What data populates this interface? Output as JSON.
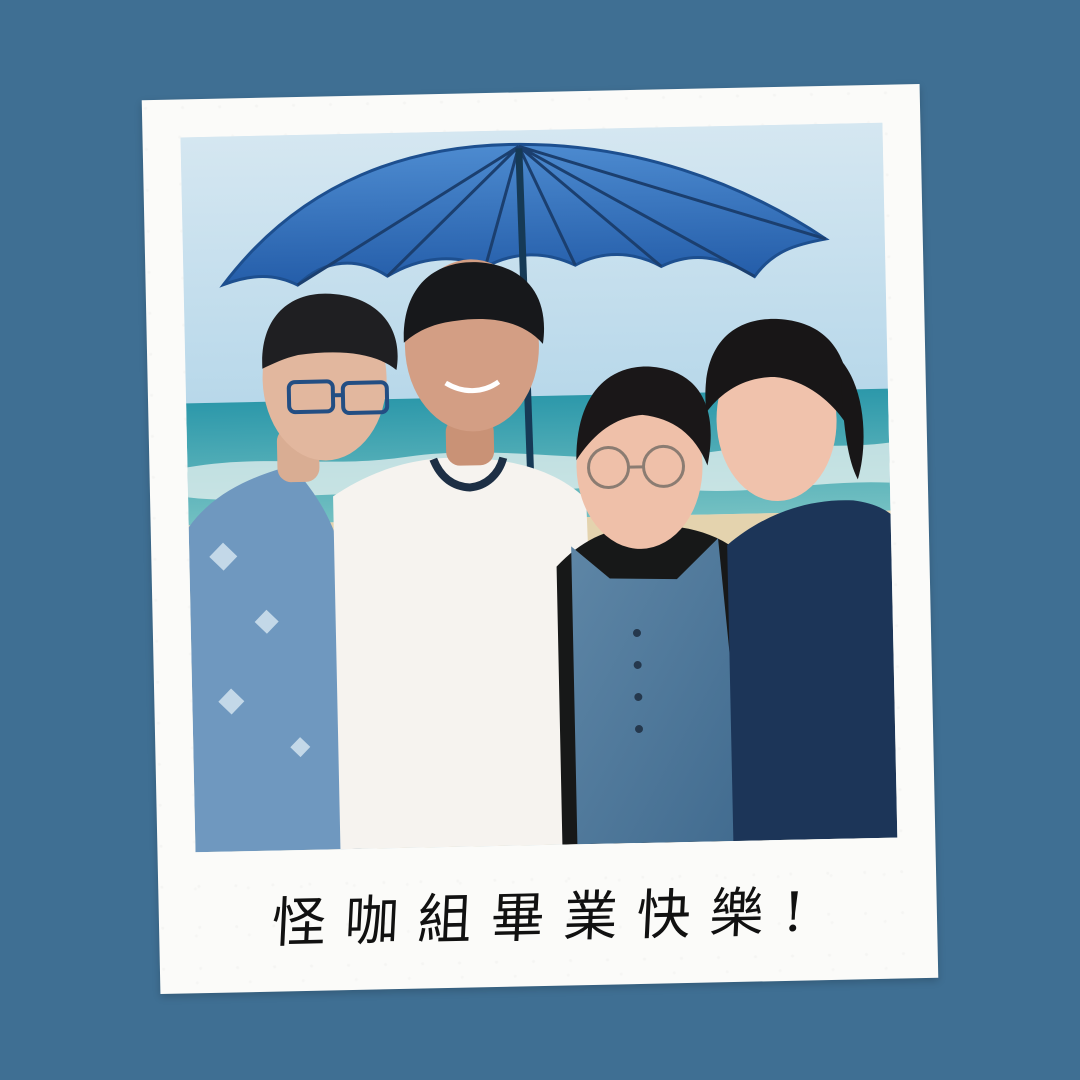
{
  "caption": {
    "text": "怪咖組畢業快樂!"
  },
  "colors": {
    "background": "#3f6f93",
    "polaroid_frame": "#fbfbf9",
    "sky": "#b8d8ea",
    "sea": "#2f9cab",
    "umbrella": "#2f68b4"
  },
  "icons": {
    "umbrella": "umbrella-icon"
  }
}
